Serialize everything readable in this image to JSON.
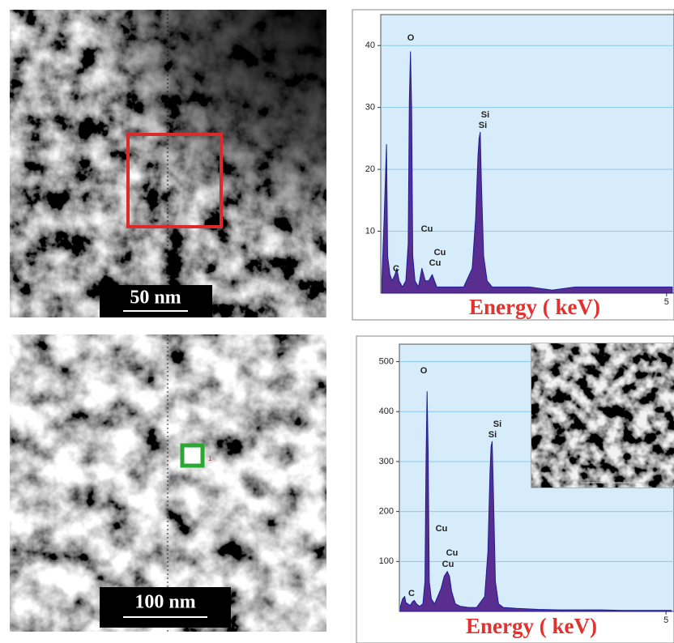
{
  "images": [
    {
      "marker": "1",
      "scale_bar": "50 nm"
    },
    {
      "marker": "1",
      "scale_bar": "100 nm"
    }
  ],
  "chart_data": [
    {
      "type": "area",
      "x_label": "Energy ( keV)",
      "x": [
        0.02,
        0.06,
        0.1,
        0.12,
        0.16,
        0.2,
        0.25,
        0.28,
        0.32,
        0.38,
        0.44,
        0.48,
        0.5,
        0.52,
        0.54,
        0.56,
        0.6,
        0.66,
        0.72,
        0.78,
        0.84,
        0.9,
        0.94,
        0.98,
        1.05,
        1.15,
        1.3,
        1.45,
        1.6,
        1.66,
        1.7,
        1.72,
        1.74,
        1.76,
        1.8,
        1.86,
        1.95,
        2.2,
        2.6,
        3.0,
        3.4,
        3.8,
        4.2,
        4.6,
        5.0,
        5.1
      ],
      "values": [
        2,
        12,
        24,
        6,
        3,
        2,
        3,
        4,
        2,
        1,
        2,
        8,
        31,
        39,
        30,
        6,
        2,
        1,
        4,
        2,
        2,
        3,
        2,
        1,
        1,
        1,
        1,
        1,
        4,
        12,
        22,
        25,
        26,
        18,
        6,
        2,
        1,
        1,
        1,
        0.5,
        1,
        1,
        1,
        1,
        1,
        1
      ],
      "color": "#5a2d91",
      "xlim": [
        0,
        5.13
      ],
      "xticks": [
        5
      ],
      "ylim": [
        0,
        45
      ],
      "yticks": [
        10,
        20,
        30,
        40
      ],
      "grid": true,
      "annotations": [
        "O",
        "Si",
        "Si",
        "Cu",
        "Cu",
        "Cu",
        "C"
      ]
    },
    {
      "type": "area",
      "x_label": "Energy ( keV)",
      "x": [
        0.02,
        0.06,
        0.1,
        0.12,
        0.16,
        0.2,
        0.25,
        0.28,
        0.32,
        0.38,
        0.44,
        0.48,
        0.5,
        0.52,
        0.54,
        0.56,
        0.6,
        0.66,
        0.72,
        0.78,
        0.84,
        0.9,
        0.94,
        0.98,
        1.05,
        1.15,
        1.3,
        1.45,
        1.6,
        1.66,
        1.7,
        1.72,
        1.74,
        1.76,
        1.8,
        1.86,
        1.95,
        2.2,
        2.6,
        3.0,
        3.4,
        3.8,
        4.2,
        4.6,
        5.0,
        5.1
      ],
      "values": [
        10,
        25,
        30,
        18,
        15,
        12,
        20,
        22,
        15,
        10,
        15,
        60,
        300,
        440,
        320,
        60,
        25,
        15,
        30,
        45,
        70,
        80,
        70,
        40,
        15,
        10,
        8,
        8,
        30,
        120,
        280,
        330,
        340,
        250,
        60,
        15,
        8,
        6,
        4,
        3,
        3,
        3,
        2,
        2,
        2,
        2
      ],
      "color": "#5a2d91",
      "xlim": [
        0,
        5.15
      ],
      "xticks": [
        5
      ],
      "ylim": [
        0,
        535
      ],
      "yticks": [
        100,
        200,
        300,
        400,
        500
      ],
      "grid": true,
      "annotations": [
        "O",
        "Si",
        "Si",
        "Cu",
        "Cu",
        "Cu",
        "C"
      ]
    }
  ]
}
